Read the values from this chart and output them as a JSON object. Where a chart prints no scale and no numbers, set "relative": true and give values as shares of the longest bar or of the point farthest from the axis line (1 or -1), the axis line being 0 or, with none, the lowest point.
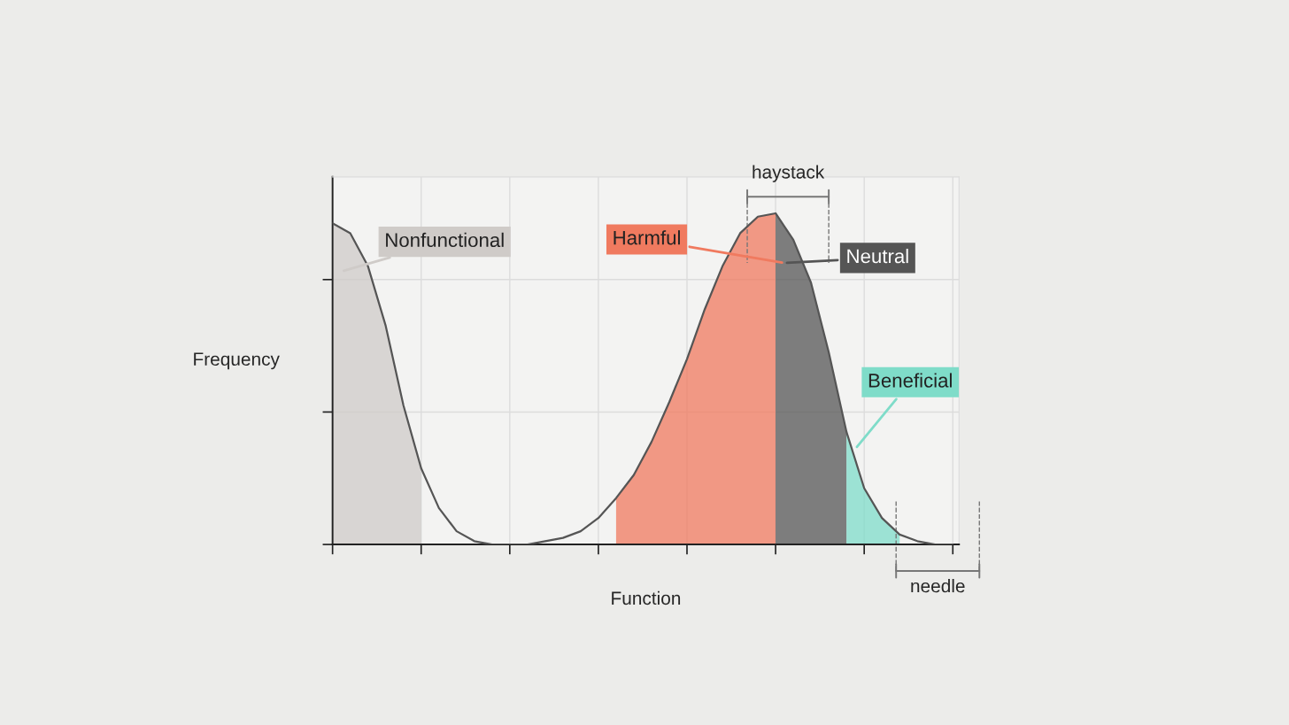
{
  "chart_data": {
    "type": "line",
    "xlabel": "Function",
    "ylabel": "Frequency",
    "relative": true,
    "grid": true,
    "categories": [
      null,
      null,
      null,
      null,
      null,
      null,
      null,
      null,
      null,
      null,
      null,
      null,
      null,
      null,
      null,
      null,
      null,
      null,
      null,
      null,
      null,
      null,
      null,
      null,
      null,
      null,
      null,
      null,
      null,
      null,
      null,
      null,
      null,
      null,
      null,
      null
    ],
    "series": [
      {
        "color": "#555555",
        "values": [
          0.97,
          0.94,
          0.84,
          0.66,
          0.42,
          0.23,
          0.11,
          0.04,
          0.01,
          0,
          0,
          0,
          0.01,
          0.02,
          0.04,
          0.08,
          0.14,
          0.21,
          0.31,
          0.43,
          0.56,
          0.71,
          0.84,
          0.94,
          0.99,
          1.0,
          0.92,
          0.79,
          0.58,
          0.34,
          0.17,
          0.08,
          0.03,
          0.01,
          0,
          0
        ]
      },
      {
        "type": "area",
        "name": "Nonfunctional",
        "color": "#cfcbc8",
        "values": [
          0.97,
          0.94,
          0.84,
          0.66,
          0.42,
          0.23,
          null,
          null,
          null,
          null,
          null,
          null,
          null,
          null,
          null,
          null,
          null,
          null,
          null,
          null,
          null,
          null,
          null,
          null,
          null,
          null,
          null,
          null,
          null,
          null,
          null,
          null,
          null,
          null,
          null,
          null
        ]
      },
      {
        "type": "area",
        "name": "Harmful",
        "color": "#f07a5f",
        "values": [
          null,
          null,
          null,
          null,
          null,
          null,
          null,
          null,
          null,
          null,
          null,
          null,
          null,
          null,
          null,
          null,
          0.14,
          0.21,
          0.31,
          0.43,
          0.56,
          0.71,
          0.84,
          0.94,
          0.99,
          1.0,
          null,
          null,
          null,
          null,
          null,
          null,
          null,
          null,
          null,
          null
        ]
      },
      {
        "type": "area",
        "name": "Neutral",
        "color": "#555555",
        "values": [
          null,
          null,
          null,
          null,
          null,
          null,
          null,
          null,
          null,
          null,
          null,
          null,
          null,
          null,
          null,
          null,
          null,
          null,
          null,
          null,
          null,
          null,
          null,
          null,
          null,
          1.0,
          0.92,
          0.79,
          0.58,
          0.34,
          null,
          null,
          null,
          null,
          null,
          null
        ]
      },
      {
        "type": "area",
        "name": "Beneficial",
        "color": "#7fdcc9",
        "values": [
          null,
          null,
          null,
          null,
          null,
          null,
          null,
          null,
          null,
          null,
          null,
          null,
          null,
          null,
          null,
          null,
          null,
          null,
          null,
          null,
          null,
          null,
          null,
          null,
          null,
          null,
          null,
          null,
          null,
          0.34,
          0.17,
          0.08,
          0.03,
          null,
          null,
          null
        ]
      }
    ],
    "annotations": [
      "haystack",
      "needle"
    ]
  }
}
